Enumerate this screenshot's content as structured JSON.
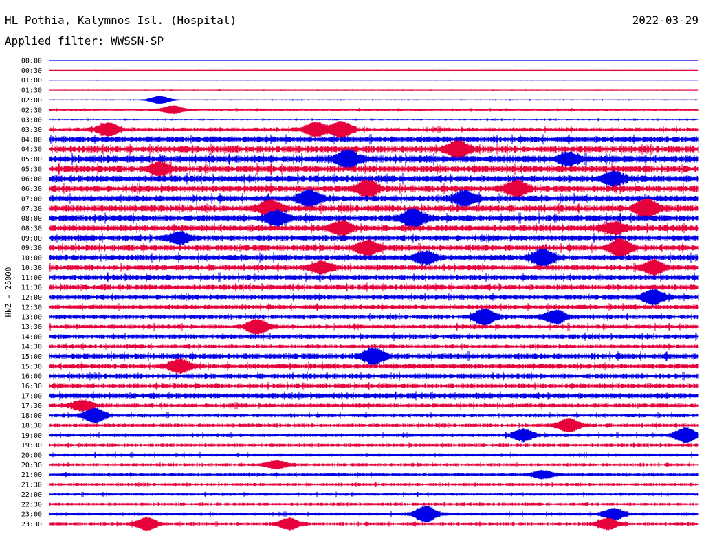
{
  "header": {
    "station_title": "HL Pothia, Kalymnos Isl. (Hospital)",
    "date": "2022-03-29",
    "filter_label": "Applied filter: WWSSN-SP"
  },
  "chart_data": {
    "type": "line",
    "title": "HL Pothia, Kalymnos Isl. (Hospital)",
    "subtitle": "Applied filter: WWSSN-SP",
    "ylabel": "HNZ - 25000",
    "xlabel": "",
    "date": "2022-03-29",
    "grid": false,
    "row_labels": [
      "00:00",
      "00:30",
      "01:00",
      "01:30",
      "02:00",
      "02:30",
      "03:00",
      "03:30",
      "04:00",
      "04:30",
      "05:00",
      "05:30",
      "06:00",
      "06:30",
      "07:00",
      "07:30",
      "08:00",
      "08:30",
      "09:00",
      "09:30",
      "10:00",
      "10:30",
      "11:00",
      "11:30",
      "12:00",
      "12:30",
      "13:00",
      "13:30",
      "14:00",
      "14:30",
      "15:00",
      "15:30",
      "16:00",
      "16:30",
      "17:00",
      "17:30",
      "18:00",
      "18:30",
      "19:00",
      "19:30",
      "20:00",
      "20:30",
      "21:00",
      "21:30",
      "22:00",
      "22:30",
      "23:00",
      "23:30"
    ],
    "trace_colors": [
      "#0000e6",
      "#e6003c"
    ],
    "noise_amplitude": [
      0.15,
      0.4,
      0.35,
      0.5,
      0.6,
      1.2,
      0.9,
      2.2,
      3.2,
      3.6,
      4.0,
      3.8,
      3.6,
      3.6,
      3.4,
      3.4,
      3.4,
      3.2,
      3.0,
      3.2,
      3.2,
      3.0,
      3.0,
      2.8,
      2.6,
      2.4,
      2.4,
      2.4,
      2.6,
      2.2,
      3.2,
      2.8,
      2.8,
      2.4,
      2.8,
      2.4,
      2.0,
      2.0,
      2.0,
      1.8,
      1.8,
      1.6,
      1.6,
      1.6,
      1.6,
      1.6,
      1.8,
      1.8
    ],
    "events": [
      {
        "row": 4,
        "pos": 0.17,
        "amp": 5
      },
      {
        "row": 5,
        "pos": 0.19,
        "amp": 5
      },
      {
        "row": 7,
        "pos": 0.09,
        "amp": 8
      },
      {
        "row": 7,
        "pos": 0.41,
        "amp": 9
      },
      {
        "row": 7,
        "pos": 0.45,
        "amp": 10
      },
      {
        "row": 9,
        "pos": 0.63,
        "amp": 9
      },
      {
        "row": 10,
        "pos": 0.46,
        "amp": 10
      },
      {
        "row": 10,
        "pos": 0.8,
        "amp": 7
      },
      {
        "row": 11,
        "pos": 0.17,
        "amp": 7
      },
      {
        "row": 12,
        "pos": 0.87,
        "amp": 8
      },
      {
        "row": 13,
        "pos": 0.49,
        "amp": 9
      },
      {
        "row": 13,
        "pos": 0.72,
        "amp": 9
      },
      {
        "row": 14,
        "pos": 0.4,
        "amp": 10
      },
      {
        "row": 14,
        "pos": 0.64,
        "amp": 9
      },
      {
        "row": 15,
        "pos": 0.34,
        "amp": 10
      },
      {
        "row": 15,
        "pos": 0.92,
        "amp": 12
      },
      {
        "row": 16,
        "pos": 0.35,
        "amp": 9
      },
      {
        "row": 16,
        "pos": 0.56,
        "amp": 11
      },
      {
        "row": 17,
        "pos": 0.45,
        "amp": 8
      },
      {
        "row": 17,
        "pos": 0.87,
        "amp": 7
      },
      {
        "row": 18,
        "pos": 0.2,
        "amp": 7
      },
      {
        "row": 19,
        "pos": 0.49,
        "amp": 9
      },
      {
        "row": 19,
        "pos": 0.88,
        "amp": 10
      },
      {
        "row": 20,
        "pos": 0.58,
        "amp": 7
      },
      {
        "row": 20,
        "pos": 0.76,
        "amp": 10
      },
      {
        "row": 21,
        "pos": 0.42,
        "amp": 7
      },
      {
        "row": 21,
        "pos": 0.93,
        "amp": 8
      },
      {
        "row": 24,
        "pos": 0.93,
        "amp": 9
      },
      {
        "row": 26,
        "pos": 0.67,
        "amp": 10
      },
      {
        "row": 26,
        "pos": 0.78,
        "amp": 8
      },
      {
        "row": 27,
        "pos": 0.32,
        "amp": 9
      },
      {
        "row": 30,
        "pos": 0.5,
        "amp": 9
      },
      {
        "row": 31,
        "pos": 0.2,
        "amp": 8
      },
      {
        "row": 35,
        "pos": 0.05,
        "amp": 6
      },
      {
        "row": 36,
        "pos": 0.07,
        "amp": 9
      },
      {
        "row": 37,
        "pos": 0.8,
        "amp": 8
      },
      {
        "row": 38,
        "pos": 0.73,
        "amp": 7
      },
      {
        "row": 38,
        "pos": 0.98,
        "amp": 9
      },
      {
        "row": 41,
        "pos": 0.35,
        "amp": 5
      },
      {
        "row": 42,
        "pos": 0.76,
        "amp": 5
      },
      {
        "row": 46,
        "pos": 0.58,
        "amp": 10
      },
      {
        "row": 46,
        "pos": 0.87,
        "amp": 7
      },
      {
        "row": 47,
        "pos": 0.15,
        "amp": 8
      },
      {
        "row": 47,
        "pos": 0.37,
        "amp": 7
      },
      {
        "row": 47,
        "pos": 0.86,
        "amp": 7
      }
    ]
  }
}
